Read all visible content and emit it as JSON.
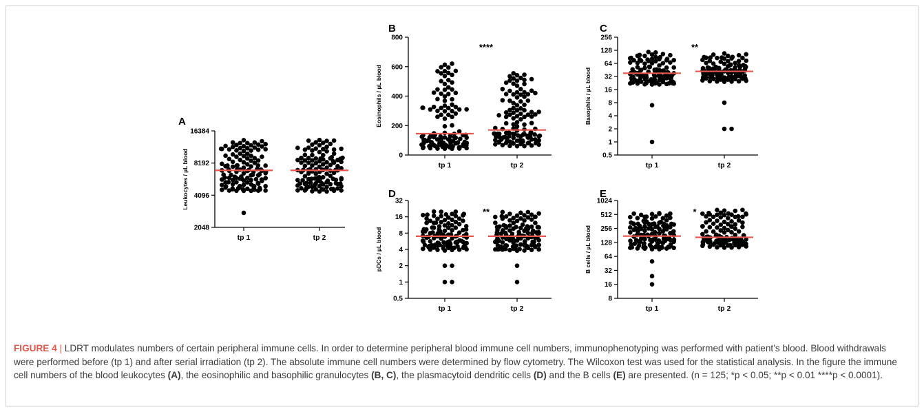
{
  "caption": {
    "figure_label": "FIGURE 4",
    "separator": "|",
    "parts": [
      {
        "text": "LDRT modulates numbers of certain peripheral immune cells. In order to determine peripheral blood immune cell numbers, immunophenotyping was performed with patient’s blood. Blood withdrawals were performed before (tp 1) and after serial irradiation (tp 2). The absolute immune cell numbers were determined by flow cytometry. The Wilcoxon test was used for the statistical analysis. In the figure the immune cell numbers of the blood leukocytes ",
        "bold": false
      },
      {
        "text": "(A)",
        "bold": true
      },
      {
        "text": ", the eosinophilic and basophilic granulocytes ",
        "bold": false
      },
      {
        "text": "(B, C)",
        "bold": true
      },
      {
        "text": ", the plasmacytoid dendritic cells ",
        "bold": false
      },
      {
        "text": "(D)",
        "bold": true
      },
      {
        "text": " and the B cells ",
        "bold": false
      },
      {
        "text": "(E)",
        "bold": true
      },
      {
        "text": " are presented. (n = 125; *p < 0.05; **p < 0.01 ****p < 0.0001).",
        "bold": false
      }
    ]
  },
  "colors": {
    "dots": "#000000",
    "median": "#e8554e",
    "axis": "#000000",
    "caption_label": "#e0584b",
    "caption_text": "#3a3a3a"
  },
  "chart_data": [
    {
      "type": "scatter",
      "panel": "A",
      "ylabel": "Leukocytes / µL blood",
      "yscale": "log2",
      "ylim": [
        2048,
        16384
      ],
      "yticks": [
        2048,
        4096,
        8192,
        16384
      ],
      "categories": [
        "tp 1",
        "tp 2"
      ],
      "significance": "",
      "series": [
        {
          "category": "tp 1",
          "median": 7000,
          "min": 2800,
          "max": 13600,
          "q1": 6000,
          "q3": 8400,
          "n": 125,
          "outliers": [
            2800
          ]
        },
        {
          "category": "tp 2",
          "median": 7000,
          "min": 3500,
          "max": 13600,
          "q1": 5900,
          "q3": 8500,
          "n": 125,
          "outliers": []
        }
      ]
    },
    {
      "type": "scatter",
      "panel": "B",
      "ylabel": "Eosinophils / µL blood",
      "yscale": "linear",
      "ylim": [
        0,
        800
      ],
      "yticks": [
        0,
        200,
        400,
        600,
        800
      ],
      "categories": [
        "tp 1",
        "tp 2"
      ],
      "significance": "****",
      "series": [
        {
          "category": "tp 1",
          "median": 145,
          "min": 10,
          "max": 620,
          "q1": 85,
          "q3": 240,
          "n": 125,
          "outliers": [
            620,
            570
          ]
        },
        {
          "category": "tp 2",
          "median": 170,
          "min": 10,
          "max": 560,
          "q1": 110,
          "q3": 240,
          "n": 125,
          "outliers": [
            555,
            520
          ]
        }
      ]
    },
    {
      "type": "scatter",
      "panel": "C",
      "ylabel": "Basophils / µL blood",
      "yscale": "log2",
      "ylim": [
        0.5,
        256
      ],
      "yticks": [
        0.5,
        1,
        2,
        4,
        8,
        16,
        32,
        64,
        128,
        256
      ],
      "categories": [
        "tp 1",
        "tp 2"
      ],
      "significance": "**",
      "series": [
        {
          "category": "tp 1",
          "median": 38,
          "min": 1,
          "max": 120,
          "q1": 28,
          "q3": 52,
          "n": 125,
          "outliers": [
            1,
            7
          ]
        },
        {
          "category": "tp 2",
          "median": 42,
          "min": 2,
          "max": 110,
          "q1": 32,
          "q3": 55,
          "n": 125,
          "outliers": [
            2,
            2,
            8
          ]
        }
      ]
    },
    {
      "type": "scatter",
      "panel": "D",
      "ylabel": "pDCs / µL blood",
      "yscale": "log2",
      "ylim": [
        0.5,
        32
      ],
      "yticks": [
        0.5,
        1,
        2,
        4,
        8,
        16,
        32
      ],
      "categories": [
        "tp 1",
        "tp 2"
      ],
      "significance": "**",
      "series": [
        {
          "category": "tp 1",
          "median": 7,
          "min": 1,
          "max": 20,
          "q1": 5,
          "q3": 9,
          "n": 125,
          "outliers": [
            1,
            1,
            2,
            2
          ]
        },
        {
          "category": "tp 2",
          "median": 7,
          "min": 1,
          "max": 20,
          "q1": 5,
          "q3": 10,
          "n": 125,
          "outliers": [
            1,
            2
          ]
        }
      ]
    },
    {
      "type": "scatter",
      "panel": "E",
      "ylabel": "B cells / µL blood",
      "yscale": "log2",
      "ylim": [
        8,
        1024
      ],
      "yticks": [
        8,
        16,
        32,
        64,
        128,
        256,
        512,
        1024
      ],
      "categories": [
        "tp 1",
        "tp 2"
      ],
      "significance": "*",
      "series": [
        {
          "category": "tp 1",
          "median": 175,
          "min": 16,
          "max": 560,
          "q1": 120,
          "q3": 250,
          "n": 125,
          "outliers": [
            16,
            24,
            50
          ]
        },
        {
          "category": "tp 2",
          "median": 165,
          "min": 45,
          "max": 640,
          "q1": 130,
          "q3": 210,
          "n": 125,
          "outliers": [
            640
          ]
        }
      ]
    }
  ]
}
